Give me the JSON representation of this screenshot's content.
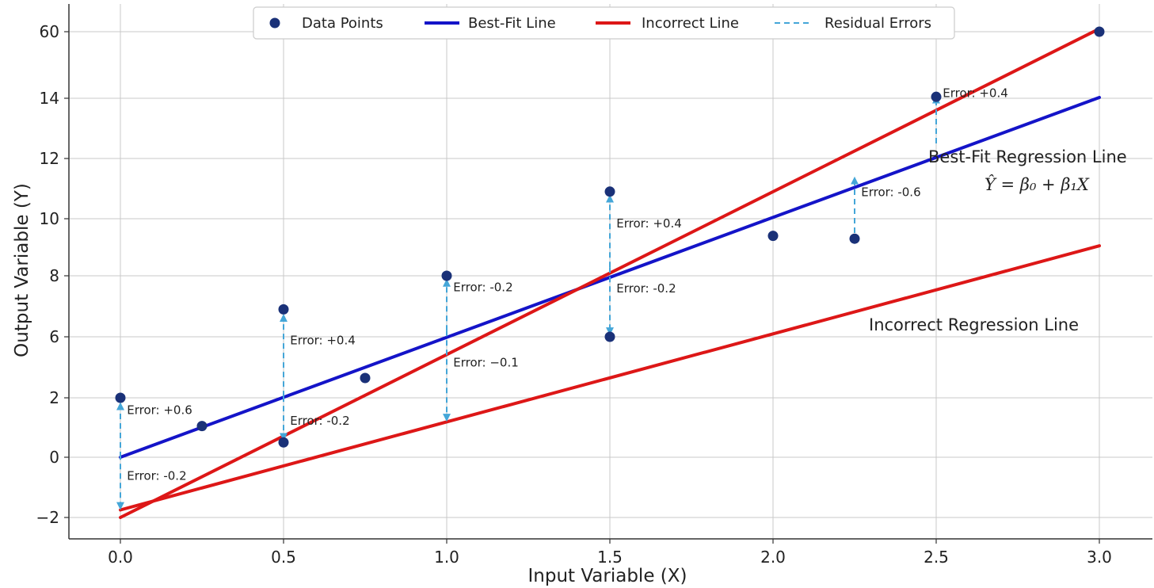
{
  "chart_data": {
    "type": "line",
    "xlabel": "Input Variable (X)",
    "ylabel": "Output Variable (Y)",
    "xlim": [
      -0.15,
      3.15
    ],
    "x_ticks": [
      0.0,
      0.5,
      1.0,
      1.5,
      2.0,
      2.5,
      3.0
    ],
    "x_tick_labels": [
      "0.0",
      "0.5",
      "1.0",
      "1.5",
      "2.0",
      "2.5",
      "3.0"
    ],
    "y_ticks": [
      -2,
      0,
      2,
      6,
      8,
      10,
      12,
      14,
      60
    ],
    "y_tick_labels": [
      "−2",
      "0",
      "2",
      "6",
      "8",
      "10",
      "12",
      "14",
      "60"
    ],
    "grid": true,
    "legend_position": "top-center",
    "legend": [
      {
        "label": "Data Points",
        "kind": "marker",
        "color": "#1a3178"
      },
      {
        "label": "Best-Fit Line",
        "kind": "line",
        "color": "#1414c8"
      },
      {
        "label": "Incorrect Line",
        "kind": "line",
        "color": "#dd1717"
      },
      {
        "label": "Residual Errors",
        "kind": "dashed",
        "color": "#44a6d8"
      }
    ],
    "series": [
      {
        "name": "Data Points",
        "type": "scatter",
        "color": "#1a3178",
        "points": [
          {
            "x": 0.0,
            "y": 2.0
          },
          {
            "x": 0.25,
            "y": 1.05
          },
          {
            "x": 0.5,
            "y": 6.9
          },
          {
            "x": 0.5,
            "y": 0.5
          },
          {
            "x": 0.75,
            "y": 3.3
          },
          {
            "x": 1.0,
            "y": 8.0
          },
          {
            "x": 1.5,
            "y": 10.9
          },
          {
            "x": 1.5,
            "y": 6.0
          },
          {
            "x": 2.0,
            "y": 9.4
          },
          {
            "x": 2.25,
            "y": 9.3
          },
          {
            "x": 2.5,
            "y": 15.0
          },
          {
            "x": 3.0,
            "y": 60.0
          }
        ]
      },
      {
        "name": "Best-Fit Line",
        "type": "line",
        "color": "#1414c8",
        "points": [
          {
            "x": 0.0,
            "y": 0.0
          },
          {
            "x": 3.0,
            "y": 14.55
          }
        ]
      },
      {
        "name": "Incorrect Line",
        "type": "line",
        "color": "#dd1717",
        "points": [
          {
            "x": 0.0,
            "y": -2.0
          },
          {
            "x": 3.0,
            "y": 62.0
          }
        ]
      },
      {
        "name": "Incorrect Line",
        "type": "line",
        "color": "#dd1717",
        "points": [
          {
            "x": 0.0,
            "y": -1.75
          },
          {
            "x": 3.0,
            "y": 9.05
          }
        ]
      }
    ],
    "residuals": [
      {
        "x": 0.0,
        "y_from": 0.0,
        "y_to": 1.8
      },
      {
        "x": 0.0,
        "y_from": 0.1,
        "y_to": -1.7
      },
      {
        "x": 0.5,
        "y_from": 2.1,
        "y_to": 6.7
      },
      {
        "x": 0.5,
        "y_from": 2.1,
        "y_to": 0.6
      },
      {
        "x": 1.0,
        "y_from": 6.2,
        "y_to": 7.85
      },
      {
        "x": 1.0,
        "y_from": 6.2,
        "y_to": 1.25
      },
      {
        "x": 1.5,
        "y_from": 8.3,
        "y_to": 10.75
      },
      {
        "x": 1.5,
        "y_from": 8.3,
        "y_to": 6.1
      },
      {
        "x": 2.25,
        "y_from": 9.5,
        "y_to": 11.35
      },
      {
        "x": 2.5,
        "y_from": 12.5,
        "y_to": 14.85
      }
    ],
    "error_labels": [
      {
        "text": "Error: +0.6",
        "x": 0.02,
        "y": 1.45
      },
      {
        "text": "Error: -0.2",
        "x": 0.02,
        "y": -0.75
      },
      {
        "text": "Error: +0.4",
        "x": 0.52,
        "y": 5.5
      },
      {
        "text": "Error: -0.2",
        "x": 0.52,
        "y": 1.1
      },
      {
        "text": "Error: -0.2",
        "x": 1.02,
        "y": 7.5
      },
      {
        "text": "Error: −0.1",
        "x": 1.02,
        "y": 4.05
      },
      {
        "text": "Error: +0.4",
        "x": 1.52,
        "y": 9.7
      },
      {
        "text": "Error: -0.2",
        "x": 1.52,
        "y": 7.45
      },
      {
        "text": "Error: -0.6",
        "x": 2.27,
        "y": 10.75
      },
      {
        "text": "Error: +0.4",
        "x": 2.52,
        "y": 14.75
      }
    ],
    "line_annotations": {
      "best_fit": "Best-Fit Regression Line",
      "formula": "Ŷ = β₀ + β₁X",
      "incorrect": "Incorrect Regression Line"
    }
  }
}
